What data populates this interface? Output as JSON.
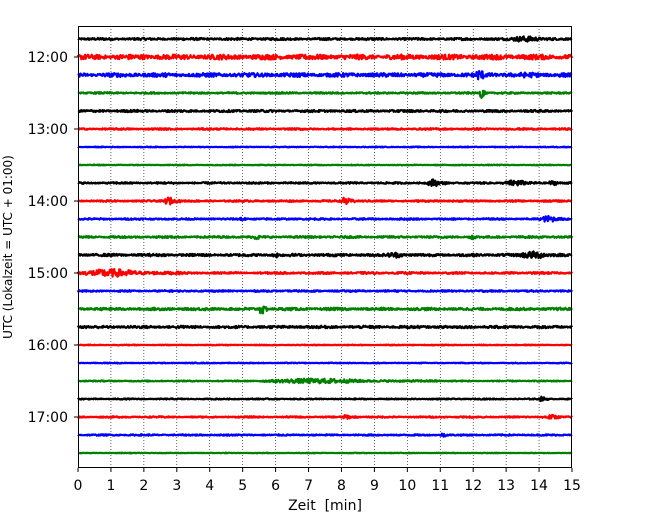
{
  "chart_data": {
    "type": "line",
    "xlabel": "Zeit  [min]",
    "ylabel": "UTC (Lokalzeit = UTC + 01:00)",
    "xlim": [
      0,
      15
    ],
    "x_ticks": [
      "0",
      "1",
      "2",
      "3",
      "4",
      "5",
      "6",
      "7",
      "8",
      "9",
      "10",
      "11",
      "12",
      "13",
      "14",
      "15"
    ],
    "y_tick_labels": [
      "12:00",
      "13:00",
      "14:00",
      "15:00",
      "16:00",
      "17:00"
    ],
    "grid": "vertical dotted at each minute",
    "trace_interval_min": 15,
    "colors": [
      "#000000",
      "#ff0000",
      "#0000ff",
      "#008000"
    ],
    "series": [
      {
        "start": "11:45",
        "color": "#000000",
        "amplitude": 0.4,
        "events": [
          {
            "t": 13.0,
            "duration": 1.8,
            "amp": 1.3
          }
        ]
      },
      {
        "start": "12:00",
        "color": "#ff0000",
        "amplitude": 0.9,
        "events": []
      },
      {
        "start": "12:15",
        "color": "#0000ff",
        "amplitude": 0.7,
        "events": [
          {
            "t": 12.0,
            "duration": 0.6,
            "amp": 2.5
          },
          {
            "t": 13.0,
            "duration": 2.0,
            "amp": 1.2
          }
        ]
      },
      {
        "start": "12:30",
        "color": "#008000",
        "amplitude": 0.3,
        "events": [
          {
            "t": 12.2,
            "duration": 0.2,
            "amp": 3.2
          }
        ]
      },
      {
        "start": "12:45",
        "color": "#000000",
        "amplitude": 0.4,
        "events": []
      },
      {
        "start": "13:00",
        "color": "#ff0000",
        "amplitude": 0.3,
        "events": []
      },
      {
        "start": "13:15",
        "color": "#0000ff",
        "amplitude": 0.15,
        "events": []
      },
      {
        "start": "13:30",
        "color": "#008000",
        "amplitude": 0.15,
        "events": []
      },
      {
        "start": "13:45",
        "color": "#000000",
        "amplitude": 0.3,
        "events": [
          {
            "t": 10.6,
            "duration": 0.6,
            "amp": 1.8
          },
          {
            "t": 12.9,
            "duration": 1.2,
            "amp": 1.4
          },
          {
            "t": 14.2,
            "duration": 0.7,
            "amp": 1.0
          }
        ]
      },
      {
        "start": "14:00",
        "color": "#ff0000",
        "amplitude": 0.3,
        "events": [
          {
            "t": 2.6,
            "duration": 0.5,
            "amp": 1.8
          },
          {
            "t": 8.0,
            "duration": 0.4,
            "amp": 2.0
          }
        ]
      },
      {
        "start": "14:15",
        "color": "#0000ff",
        "amplitude": 0.3,
        "events": [
          {
            "t": 4.9,
            "duration": 0.2,
            "amp": 1.5
          },
          {
            "t": 14.0,
            "duration": 0.9,
            "amp": 1.5
          }
        ]
      },
      {
        "start": "14:30",
        "color": "#008000",
        "amplitude": 0.35,
        "events": [
          {
            "t": 5.3,
            "duration": 0.4,
            "amp": 1.2
          },
          {
            "t": 11.9,
            "duration": 0.2,
            "amp": 1.6
          }
        ]
      },
      {
        "start": "14:45",
        "color": "#000000",
        "amplitude": 0.45,
        "events": [
          {
            "t": 5.9,
            "duration": 0.3,
            "amp": 1.4
          },
          {
            "t": 9.3,
            "duration": 1.0,
            "amp": 1.3
          },
          {
            "t": 13.3,
            "duration": 1.7,
            "amp": 1.7
          }
        ]
      },
      {
        "start": "15:00",
        "color": "#ff0000",
        "amplitude": 0.35,
        "events": [
          {
            "t": 0.0,
            "duration": 3.2,
            "amp": 1.8
          }
        ]
      },
      {
        "start": "15:15",
        "color": "#0000ff",
        "amplitude": 0.3,
        "events": []
      },
      {
        "start": "15:30",
        "color": "#008000",
        "amplitude": 0.45,
        "events": [
          {
            "t": 5.5,
            "duration": 0.25,
            "amp": 3.0
          }
        ]
      },
      {
        "start": "15:45",
        "color": "#000000",
        "amplitude": 0.45,
        "events": []
      },
      {
        "start": "16:00",
        "color": "#ff0000",
        "amplitude": 0.15,
        "events": []
      },
      {
        "start": "16:15",
        "color": "#0000ff",
        "amplitude": 0.15,
        "events": []
      },
      {
        "start": "16:30",
        "color": "#008000",
        "amplitude": 0.2,
        "events": [
          {
            "t": 5.5,
            "duration": 5.5,
            "amp": 1.1
          }
        ]
      },
      {
        "start": "16:45",
        "color": "#000000",
        "amplitude": 0.2,
        "events": [
          {
            "t": 14.0,
            "duration": 0.3,
            "amp": 1.2
          }
        ]
      },
      {
        "start": "17:00",
        "color": "#ff0000",
        "amplitude": 0.25,
        "events": [
          {
            "t": 8.0,
            "duration": 0.5,
            "amp": 1.0
          },
          {
            "t": 14.1,
            "duration": 0.9,
            "amp": 1.0
          }
        ]
      },
      {
        "start": "17:15",
        "color": "#0000ff",
        "amplitude": 0.25,
        "events": [
          {
            "t": 11.0,
            "duration": 0.3,
            "amp": 1.0
          }
        ]
      },
      {
        "start": "17:30",
        "color": "#008000",
        "amplitude": 0.12,
        "events": []
      }
    ]
  }
}
